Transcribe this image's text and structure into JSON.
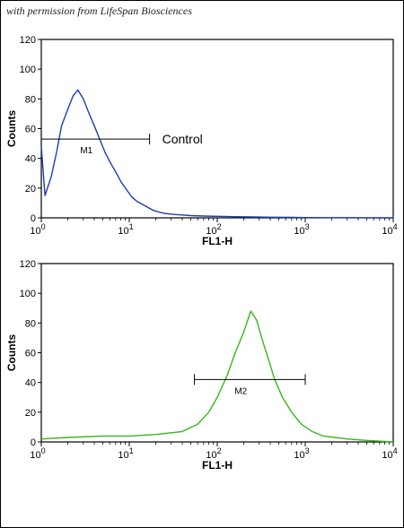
{
  "credit": "with permission from LifeSpan Biosciences",
  "chart_data": [
    {
      "type": "line",
      "xlabel": "FL1-H",
      "ylabel": "Counts",
      "xscale": "log",
      "xlim": [
        1,
        10000
      ],
      "ylim": [
        0,
        120
      ],
      "yticks": [
        0,
        20,
        40,
        60,
        80,
        100,
        120
      ],
      "xticks": [
        {
          "base": "10",
          "exp": "0"
        },
        {
          "base": "10",
          "exp": "1"
        },
        {
          "base": "10",
          "exp": "2"
        },
        {
          "base": "10",
          "exp": "3"
        },
        {
          "base": "10",
          "exp": "4"
        }
      ],
      "series": [
        {
          "name": "Control",
          "color": "#1f3fa8",
          "x": [
            1,
            1.1,
            1.3,
            1.5,
            1.7,
            2.0,
            2.3,
            2.6,
            3.0,
            3.5,
            4.0,
            4.6,
            5.3,
            6.1,
            7.0,
            8.1,
            9.3,
            10.7,
            12.3,
            14.2,
            16.3,
            18.8,
            21.6,
            25,
            30,
            38,
            50,
            70,
            100,
            150,
            250,
            400,
            700,
            1000,
            2000,
            5000,
            10000
          ],
          "y": [
            48,
            15,
            28,
            45,
            62,
            73,
            82,
            86,
            80,
            70,
            62,
            53,
            44,
            37,
            31,
            24,
            19,
            14,
            11,
            9,
            7,
            5,
            4,
            3,
            2.5,
            2,
            1.5,
            1.2,
            1,
            0.8,
            0.6,
            0.4,
            0.3,
            0.2,
            0.1,
            0.05,
            0
          ]
        }
      ],
      "markers": [
        {
          "label": "M1",
          "x_start": 1,
          "x_end": 17,
          "y": 53
        }
      ],
      "annotations": [
        "Control"
      ]
    },
    {
      "type": "line",
      "xlabel": "FL1-H",
      "ylabel": "Counts",
      "xscale": "log",
      "xlim": [
        1,
        10000
      ],
      "ylim": [
        0,
        120
      ],
      "yticks": [
        0,
        20,
        40,
        60,
        80,
        100,
        120
      ],
      "xticks": [
        {
          "base": "10",
          "exp": "0"
        },
        {
          "base": "10",
          "exp": "1"
        },
        {
          "base": "10",
          "exp": "2"
        },
        {
          "base": "10",
          "exp": "3"
        },
        {
          "base": "10",
          "exp": "4"
        }
      ],
      "series": [
        {
          "color": "#3cb41e",
          "x": [
            1,
            2,
            5,
            10,
            20,
            40,
            60,
            80,
            100,
            130,
            160,
            200,
            240,
            280,
            320,
            380,
            450,
            550,
            700,
            900,
            1200,
            1600,
            2200,
            3000,
            5000,
            10000
          ],
          "y": [
            2,
            3,
            4,
            4,
            5,
            7,
            12,
            20,
            30,
            45,
            60,
            74,
            88,
            82,
            70,
            56,
            42,
            30,
            20,
            12,
            7,
            4,
            3,
            2,
            1,
            0
          ]
        }
      ],
      "markers": [
        {
          "label": "M2",
          "x_start": 55,
          "x_end": 1000,
          "y": 42
        }
      ]
    }
  ]
}
